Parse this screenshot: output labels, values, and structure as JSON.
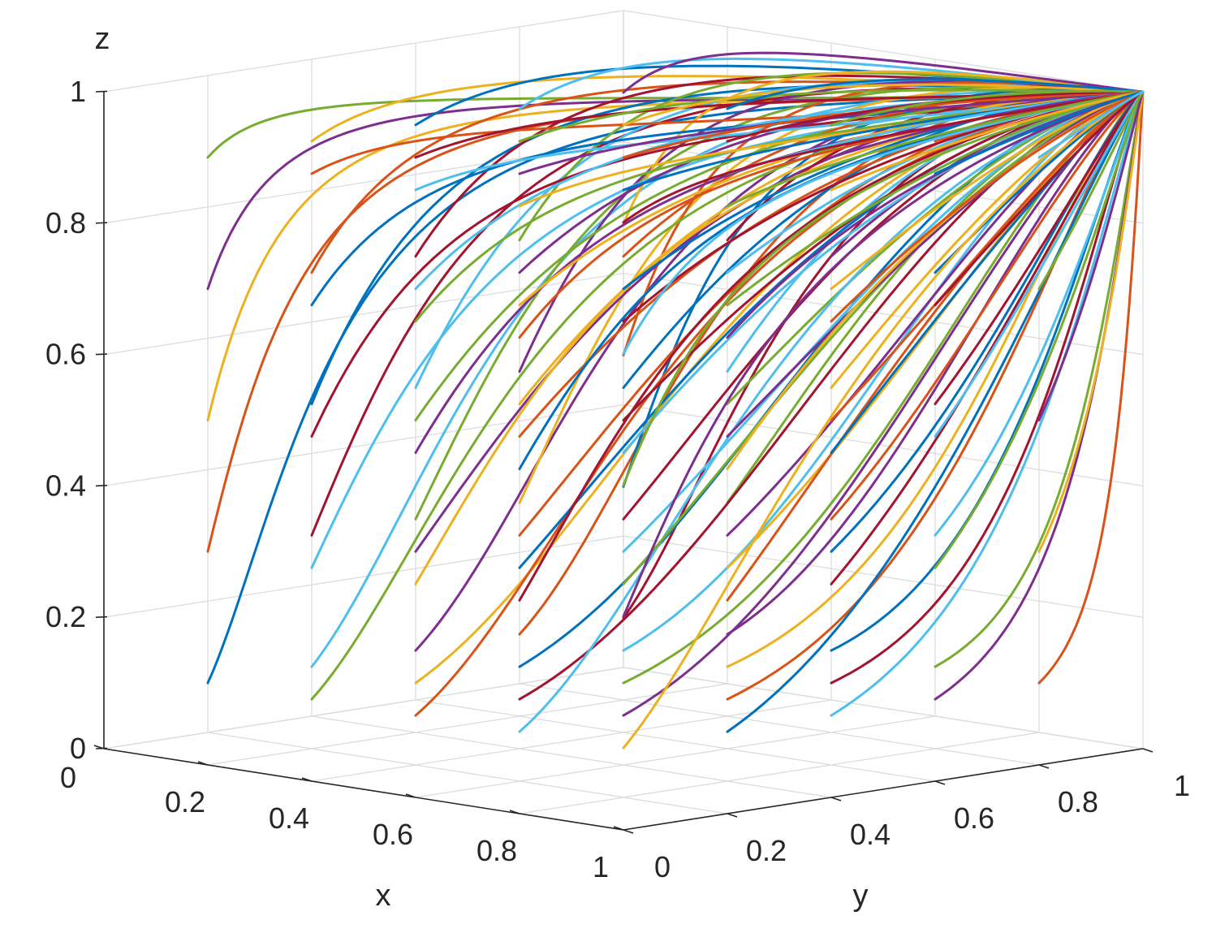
{
  "chart_data": {
    "type": "line3d",
    "title": "",
    "xlabel": "x",
    "ylabel": "y",
    "zlabel": "z",
    "xlim": [
      0,
      1
    ],
    "ylim": [
      0,
      1
    ],
    "zlim": [
      0,
      1
    ],
    "x_ticks": [
      "0",
      "0.2",
      "0.4",
      "0.6",
      "0.8",
      "1"
    ],
    "y_ticks": [
      "0",
      "0.2",
      "0.4",
      "0.6",
      "0.8",
      "1"
    ],
    "z_ticks": [
      "0",
      "0.2",
      "0.4",
      "0.6",
      "0.8",
      "1"
    ],
    "grid": true,
    "color_order": [
      "#0072BD",
      "#D95319",
      "#EDB120",
      "#7E2F8E",
      "#77AC30",
      "#4DBEEE",
      "#A2142F"
    ],
    "description_of_series": "Evolution trajectories from initial points on a 5x5 (x,y) grid at z = 0.1..0.9, all converging to (x,y,z) = (1,1,1)",
    "initial_x": [
      0.1,
      0.3,
      0.5,
      0.7,
      0.9
    ],
    "initial_y": [
      0.1,
      0.3,
      0.5,
      0.7,
      0.9
    ],
    "initial_z": [
      0.1,
      0.3,
      0.5,
      0.7,
      0.9
    ],
    "end_point": [
      1,
      1,
      1
    ]
  }
}
